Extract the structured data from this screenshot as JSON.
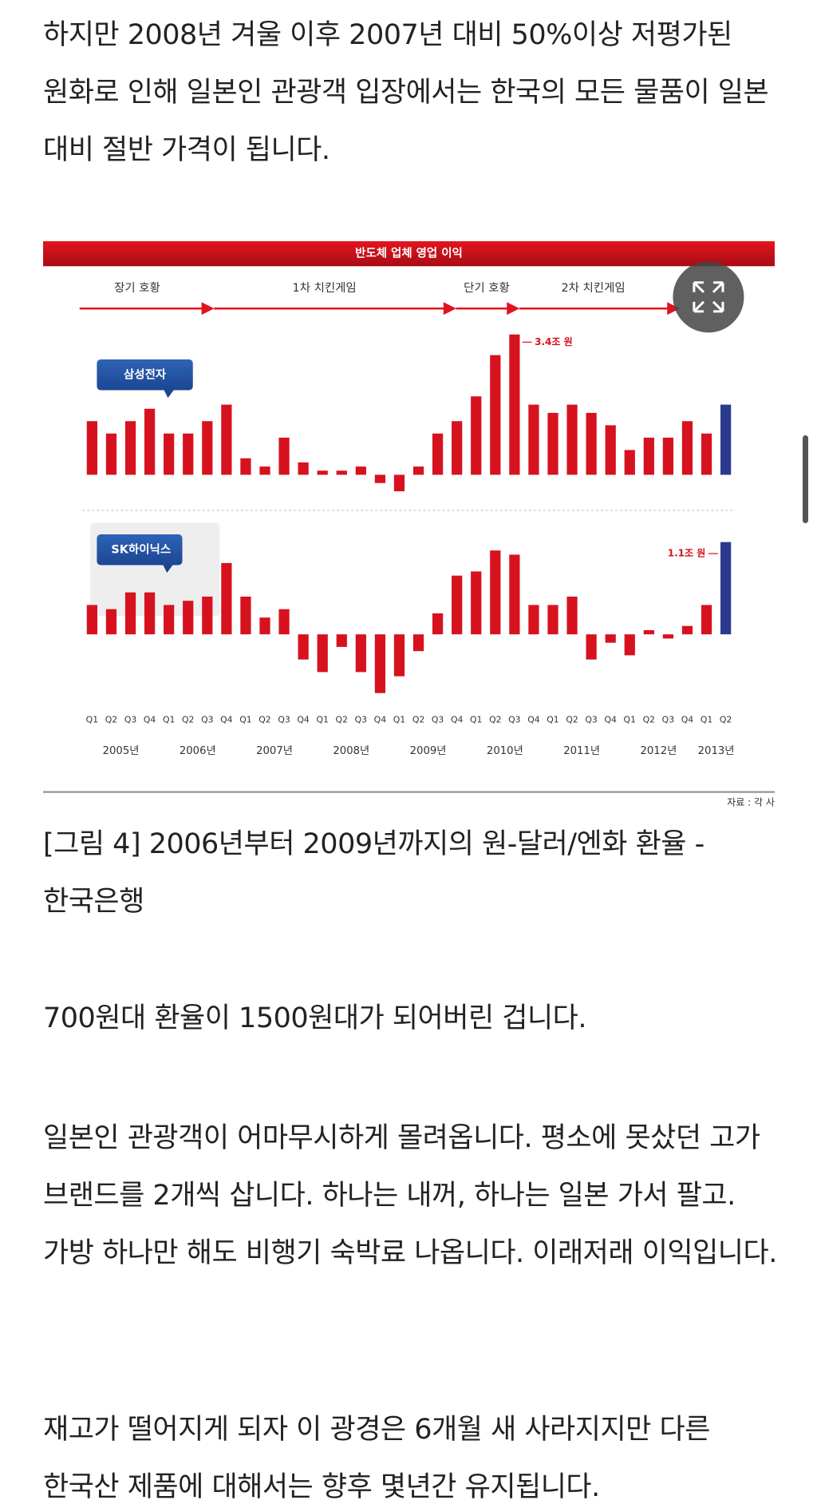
{
  "paragraphs": [
    "하지만 2008년 겨울 이후 2007년 대비 50%이상 저평가된 원화로 인해 일본인 관광객 입장에서는 한국의 모든 물품이 일본 대비 절반 가격이 됩니다.",
    "700원대 환율이 1500원대가 되어버린 겁니다.",
    "일본인 관광객이 어마무시하게 몰려옵니다. 평소에 못샀던 고가 브랜드를 2개씩 삽니다. 하나는 내꺼, 하나는 일본 가서 팔고. 가방 하나만 해도 비행기 숙박료 나옵니다. 이래저래 이익입니다.",
    "재고가 떨어지게 되자 이 광경은 6개월 새 사라지지만 다른 한국산 제품에 대해서는 향후 몇년간 유지됩니다."
  ],
  "figure": {
    "title": "반도체 업체 영업 이익",
    "phases": [
      "장기 호황",
      "1차 치킨게임",
      "단기 호황",
      "2차 치킨게임"
    ],
    "quarter_labels": [
      "Q1",
      "Q2",
      "Q3",
      "Q4"
    ],
    "years": [
      "2005년",
      "2006년",
      "2007년",
      "2008년",
      "2009년",
      "2010년",
      "2011년",
      "2012년",
      "2013년"
    ],
    "series": [
      {
        "name": "삼성전자",
        "color": "#d7121f",
        "latest_color": "#2b3a8c",
        "values": [
          1.3,
          1.0,
          1.3,
          1.6,
          1.0,
          1.0,
          1.3,
          1.7,
          0.4,
          0.2,
          0.9,
          0.3,
          0.1,
          0.1,
          0.2,
          -0.2,
          -0.4,
          0.2,
          1.0,
          1.3,
          1.9,
          2.9,
          3.4,
          1.7,
          1.5,
          1.7,
          1.5,
          1.2,
          0.6,
          0.9,
          0.9,
          1.3,
          1.0,
          1.7
        ],
        "value_labels": [
          null,
          null,
          null,
          null,
          null,
          null,
          null,
          null,
          null,
          null,
          null,
          null,
          null,
          null,
          null,
          null,
          null,
          null,
          null,
          null,
          null,
          null,
          "3.4조 원",
          null,
          null,
          null,
          null,
          null,
          null,
          null,
          null,
          null,
          null,
          null
        ]
      },
      {
        "name": "SK하이닉스",
        "color": "#d7121f",
        "latest_color": "#2b3a8c",
        "values": [
          0.35,
          0.3,
          0.5,
          0.5,
          0.35,
          0.4,
          0.45,
          0.85,
          0.45,
          0.2,
          0.3,
          -0.3,
          -0.45,
          -0.15,
          -0.45,
          -0.7,
          -0.5,
          -0.2,
          0.25,
          0.7,
          0.75,
          1.0,
          0.95,
          0.35,
          0.35,
          0.45,
          -0.3,
          -0.1,
          -0.25,
          0.05,
          -0.05,
          0.1,
          0.35,
          1.1
        ],
        "value_labels": [
          null,
          null,
          null,
          null,
          null,
          null,
          null,
          null,
          null,
          null,
          null,
          null,
          null,
          null,
          null,
          null,
          null,
          null,
          null,
          null,
          null,
          null,
          null,
          null,
          null,
          null,
          null,
          null,
          null,
          null,
          null,
          null,
          null,
          "1.1조 원"
        ]
      }
    ],
    "source": "자료 : 각 사",
    "caption": "[그림  4] 2006년부터 2009년까지의 원-달러/엔화 환율 - 한국은행"
  }
}
